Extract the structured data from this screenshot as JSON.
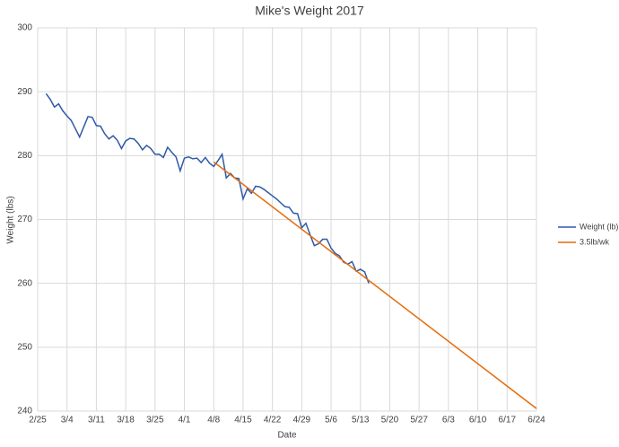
{
  "chart_data": {
    "type": "line",
    "title": "Mike's Weight 2017",
    "xlabel": "Date",
    "ylabel": "Weight (lbs)",
    "xlim": [
      56,
      175
    ],
    "xticks": [
      {
        "value": 56,
        "label": "2/25"
      },
      {
        "value": 63,
        "label": "3/4"
      },
      {
        "value": 70,
        "label": "3/11"
      },
      {
        "value": 77,
        "label": "3/18"
      },
      {
        "value": 84,
        "label": "3/25"
      },
      {
        "value": 91,
        "label": "4/1"
      },
      {
        "value": 98,
        "label": "4/8"
      },
      {
        "value": 105,
        "label": "4/15"
      },
      {
        "value": 112,
        "label": "4/22"
      },
      {
        "value": 119,
        "label": "4/29"
      },
      {
        "value": 126,
        "label": "5/6"
      },
      {
        "value": 133,
        "label": "5/13"
      },
      {
        "value": 140,
        "label": "5/20"
      },
      {
        "value": 147,
        "label": "5/27"
      },
      {
        "value": 154,
        "label": "6/3"
      },
      {
        "value": 161,
        "label": "6/10"
      },
      {
        "value": 168,
        "label": "6/17"
      },
      {
        "value": 175,
        "label": "6/24"
      }
    ],
    "ylim": [
      240,
      300
    ],
    "yticks": [
      240,
      250,
      260,
      270,
      280,
      290,
      300
    ],
    "grid": true,
    "legend": "right",
    "series": [
      {
        "name": "Weight (lb)",
        "color": "#2f5aa8",
        "x": [
          58,
          59,
          60,
          61,
          62,
          63,
          64,
          65,
          66,
          67,
          68,
          69,
          70,
          71,
          72,
          73,
          74,
          75,
          76,
          77,
          78,
          79,
          80,
          81,
          82,
          83,
          84,
          85,
          86,
          87,
          88,
          89,
          90,
          91,
          92,
          93,
          94,
          95,
          96,
          97,
          98,
          99,
          100,
          101,
          102,
          103,
          104,
          105,
          106,
          107,
          108,
          109,
          110,
          111,
          112,
          113,
          114,
          115,
          116,
          117,
          118,
          119,
          120,
          121,
          122,
          123,
          124,
          125,
          126,
          127,
          128,
          129,
          130,
          131,
          132,
          133,
          134,
          135
        ],
        "values": [
          289.7,
          288.8,
          287.6,
          288.1,
          287.0,
          286.2,
          285.5,
          284.2,
          282.9,
          284.5,
          286.1,
          286.0,
          284.7,
          284.6,
          283.4,
          282.6,
          283.1,
          282.4,
          281.1,
          282.3,
          282.7,
          282.6,
          281.9,
          280.9,
          281.6,
          281.1,
          280.2,
          280.2,
          279.7,
          281.3,
          280.5,
          279.8,
          277.6,
          279.6,
          279.8,
          279.5,
          279.6,
          278.9,
          279.7,
          278.8,
          278.3,
          279.2,
          280.2,
          276.5,
          277.2,
          276.5,
          276.4,
          273.2,
          274.8,
          274.1,
          275.2,
          275.1,
          274.7,
          274.2,
          273.7,
          273.2,
          272.6,
          272.0,
          271.9,
          271.0,
          270.9,
          268.7,
          269.4,
          267.6,
          265.9,
          266.2,
          266.9,
          266.9,
          265.5,
          264.7,
          264.3,
          263.3,
          263.0,
          263.4,
          261.9,
          262.2,
          261.8,
          260.0
        ]
      },
      {
        "name": "3.5lb/wk",
        "color": "#e46c0a",
        "x": [
          98,
          175
        ],
        "values": [
          279.0,
          240.4
        ]
      }
    ]
  }
}
